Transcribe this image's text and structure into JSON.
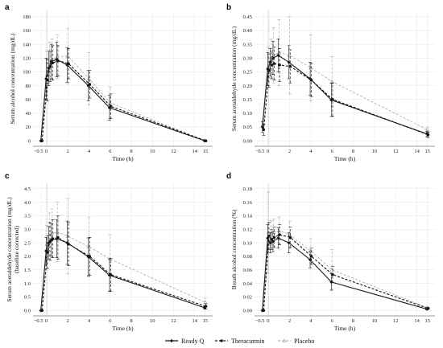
{
  "colors": {
    "ready_q": "#1a1a1a",
    "theracurmin": "#111111",
    "placebo": "#a8a8a8",
    "grid": "#e6e6e6",
    "vline": "#888888"
  },
  "legend": [
    {
      "key": "ready_q",
      "label": "Ready Q",
      "dash": "solid",
      "marker": "diamond"
    },
    {
      "key": "theracurmin",
      "label": "Theracurmin",
      "dash": "dashed",
      "marker": "circle"
    },
    {
      "key": "placebo",
      "label": "Placebo",
      "dash": "dashed-light",
      "marker": "triangle"
    }
  ],
  "chart_data": [
    {
      "panel": "a",
      "type": "line",
      "xlabel": "Time (h)",
      "ylabel": "Serum alcohol concentration (mg/dL)",
      "x": [
        -0.5,
        0,
        0.25,
        0.5,
        1,
        2,
        4,
        6,
        15
      ],
      "xticks": [
        -0.5,
        0,
        2,
        4,
        6,
        8,
        10,
        12,
        14,
        15
      ],
      "xtick_labels": [
        "−0.5",
        "0",
        "2",
        "4",
        "6",
        "8",
        "10",
        "12",
        "14",
        "15"
      ],
      "xlim": [
        -1.3,
        15.7
      ],
      "yticks": [
        0,
        20,
        40,
        60,
        80,
        100,
        120,
        140,
        160,
        180
      ],
      "ylim": [
        -8,
        188
      ],
      "vline": 0,
      "series": [
        {
          "name": "Ready Q",
          "key": "ready_q",
          "values": [
            0,
            90,
            105,
            115,
            118,
            110,
            80,
            48,
            0
          ],
          "err": [
            0,
            30,
            25,
            25,
            25,
            25,
            22,
            18,
            0
          ]
        },
        {
          "name": "Theracurmin",
          "key": "theracurmin",
          "values": [
            0,
            88,
            108,
            113,
            116,
            112,
            82,
            50,
            0
          ],
          "err": [
            0,
            30,
            22,
            25,
            22,
            22,
            20,
            18,
            0
          ]
        },
        {
          "name": "Placebo",
          "key": "placebo",
          "values": [
            0,
            95,
            113,
            118,
            122,
            123,
            90,
            55,
            0
          ],
          "err": [
            0,
            35,
            30,
            30,
            32,
            40,
            38,
            23,
            0
          ]
        }
      ]
    },
    {
      "panel": "b",
      "type": "line",
      "xlabel": "Time (h)",
      "ylabel": "Serum acetaldehyde concentration (mg/dL)",
      "x": [
        -0.5,
        0,
        0.25,
        0.5,
        1,
        2,
        4,
        6,
        15
      ],
      "xticks": [
        -0.5,
        0,
        2,
        4,
        6,
        8,
        10,
        12,
        14,
        15
      ],
      "xtick_labels": [
        "−0.5",
        "0",
        "2",
        "4",
        "6",
        "8",
        "10",
        "12",
        "14",
        "15"
      ],
      "xlim": [
        -1.3,
        15.7
      ],
      "yticks": [
        0,
        0.05,
        0.1,
        0.15,
        0.2,
        0.25,
        0.3,
        0.35,
        0.4,
        0.45
      ],
      "ytick_labels": [
        "0.00",
        "0.05",
        "0.10",
        "0.15",
        "0.20",
        "0.25",
        "0.30",
        "0.35",
        "0.40",
        "0.45"
      ],
      "ylim": [
        -0.02,
        0.47
      ],
      "vline": 0,
      "series": [
        {
          "name": "Ready Q",
          "key": "ready_q",
          "values": [
            0.05,
            0.26,
            0.285,
            0.3,
            0.31,
            0.285,
            0.225,
            0.148,
            0.025
          ],
          "err": [
            0.02,
            0.06,
            0.05,
            0.06,
            0.06,
            0.06,
            0.06,
            0.06,
            0.01
          ]
        },
        {
          "name": "Theracurmin",
          "key": "theracurmin",
          "values": [
            0.04,
            0.255,
            0.275,
            0.28,
            0.275,
            0.27,
            0.22,
            0.15,
            0.022
          ],
          "err": [
            0.02,
            0.06,
            0.05,
            0.06,
            0.06,
            0.06,
            0.06,
            0.06,
            0.01
          ]
        },
        {
          "name": "Placebo",
          "key": "placebo",
          "values": [
            0.06,
            0.27,
            0.3,
            0.31,
            0.32,
            0.31,
            0.265,
            0.215,
            0.04
          ],
          "err": [
            0.02,
            0.07,
            0.07,
            0.1,
            0.12,
            0.14,
            0.12,
            0.09,
            0.01
          ]
        }
      ]
    },
    {
      "panel": "c",
      "type": "line",
      "xlabel": "Time (h)",
      "ylabel": "Serum acetaldehyde concentration (mg/dL)",
      "ylabel2": "(baseline corrected)",
      "x": [
        -0.5,
        0,
        0.25,
        0.5,
        1,
        2,
        4,
        6,
        15
      ],
      "xticks": [
        -0.5,
        0,
        2,
        4,
        6,
        8,
        10,
        12,
        14,
        15
      ],
      "xtick_labels": [
        "−0.5",
        "0",
        "2",
        "4",
        "6",
        "8",
        "10",
        "12",
        "14",
        "15"
      ],
      "xlim": [
        -1.3,
        15.7
      ],
      "yticks": [
        0,
        0.5,
        1,
        1.5,
        2,
        2.5,
        3,
        3.5,
        4,
        4.5
      ],
      "ytick_labels": [
        "0.0",
        "0.5",
        "1.0",
        "1.5",
        "2.0",
        "2.5",
        "3.0",
        "3.5",
        "4.0",
        "4.5"
      ],
      "ylim": [
        -0.2,
        4.7
      ],
      "vline": 0,
      "series": [
        {
          "name": "Ready Q",
          "key": "ready_q",
          "values": [
            0,
            2.2,
            2.5,
            2.6,
            2.65,
            2.5,
            1.98,
            1.3,
            0.1
          ],
          "err": [
            0,
            0.5,
            0.6,
            0.6,
            0.7,
            0.8,
            0.7,
            0.6,
            0.05
          ]
        },
        {
          "name": "Theracurmin",
          "key": "theracurmin",
          "values": [
            0,
            2.15,
            2.55,
            2.65,
            2.7,
            2.45,
            2.0,
            1.32,
            0.15
          ],
          "err": [
            0,
            0.6,
            0.7,
            0.7,
            0.8,
            0.8,
            0.7,
            0.6,
            0.1
          ]
        },
        {
          "name": "Placebo",
          "key": "placebo",
          "values": [
            0,
            2.45,
            2.8,
            2.85,
            2.9,
            2.75,
            2.35,
            1.9,
            0.3
          ],
          "err": [
            0,
            0.7,
            0.8,
            0.9,
            1.1,
            1.4,
            1.1,
            0.9,
            0.15
          ]
        }
      ]
    },
    {
      "panel": "d",
      "type": "line",
      "xlabel": "Time (h)",
      "ylabel": "Breath alcohol concentration (%)",
      "x": [
        -0.5,
        0,
        0.25,
        0.5,
        1,
        2,
        4,
        6,
        15
      ],
      "xticks": [
        -0.5,
        0,
        2,
        4,
        6,
        8,
        10,
        12,
        14,
        15
      ],
      "xtick_labels": [
        "−0.5",
        "0",
        "2",
        "4",
        "6",
        "8",
        "10",
        "12",
        "14",
        "15"
      ],
      "xlim": [
        -1.3,
        15.7
      ],
      "yticks": [
        0,
        0.02,
        0.04,
        0.06,
        0.08,
        0.1,
        0.12,
        0.14,
        0.16,
        0.18
      ],
      "ytick_labels": [
        "0.00",
        "0.02",
        "0.04",
        "0.06",
        "0.08",
        "0.10",
        "0.12",
        "0.14",
        "0.16",
        "0.18"
      ],
      "ylim": [
        -0.008,
        0.188
      ],
      "vline": 0,
      "series": [
        {
          "name": "Ready Q",
          "key": "ready_q",
          "values": [
            0,
            0.107,
            0.1,
            0.102,
            0.107,
            0.1,
            0.075,
            0.042,
            0.002
          ],
          "err": [
            0,
            0.02,
            0.015,
            0.015,
            0.015,
            0.015,
            0.012,
            0.012,
            0.001
          ]
        },
        {
          "name": "Theracurmin",
          "key": "theracurmin",
          "values": [
            0,
            0.11,
            0.105,
            0.108,
            0.112,
            0.108,
            0.08,
            0.053,
            0.003
          ],
          "err": [
            0,
            0.02,
            0.015,
            0.015,
            0.015,
            0.015,
            0.012,
            0.012,
            0.001
          ]
        },
        {
          "name": "Placebo",
          "key": "placebo",
          "values": [
            0,
            0.115,
            0.113,
            0.115,
            0.118,
            0.112,
            0.088,
            0.06,
            0.004
          ],
          "err": [
            0,
            0.06,
            0.02,
            0.02,
            0.02,
            0.02,
            0.018,
            0.03,
            0.002
          ]
        }
      ]
    }
  ]
}
